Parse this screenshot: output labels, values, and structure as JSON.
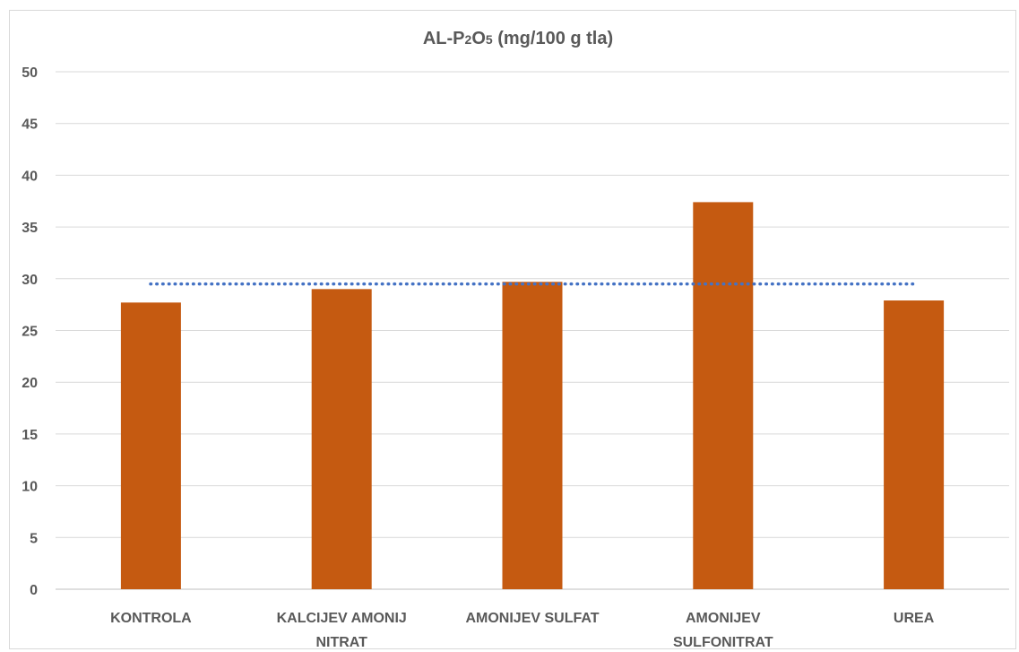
{
  "chart_data": {
    "type": "bar",
    "title_parts": [
      "AL-P",
      "2",
      "O",
      "5",
      " (mg/100 g tla)"
    ],
    "categories": [
      [
        "KONTROLA"
      ],
      [
        "KALCIJEV AMONIJ",
        "NITRAT"
      ],
      [
        "AMONIJEV SULFAT"
      ],
      [
        "AMONIJEV",
        "SULFONITRAT"
      ],
      [
        "UREA"
      ]
    ],
    "series": [
      {
        "values": [
          27.7,
          29.0,
          29.7,
          37.4,
          27.9
        ],
        "color": "#c55a11"
      }
    ],
    "reference_line": {
      "value": 29.5,
      "style": "dotted",
      "color": "#4472c4"
    },
    "ylim": [
      0,
      50
    ],
    "yticks": [
      "0",
      "5",
      "10",
      "15",
      "20",
      "25",
      "30",
      "35",
      "40",
      "45",
      "50"
    ],
    "grid": true,
    "legend": "none"
  }
}
